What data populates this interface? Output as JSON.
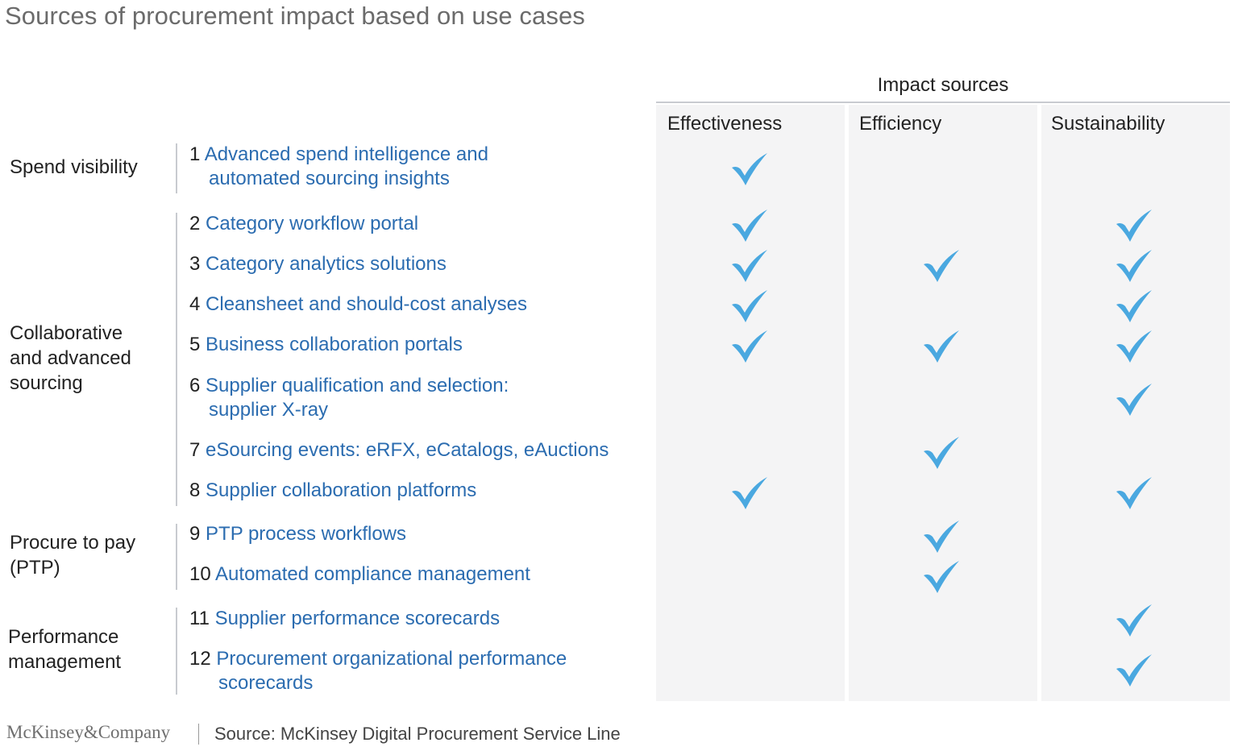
{
  "title": "Sources of procurement impact based on use cases",
  "impact_header": "Impact sources",
  "columns": [
    "Effectiveness",
    "Efficiency",
    "Sustainability"
  ],
  "groups": [
    {
      "label_lines": [
        "Spend visibility"
      ]
    },
    {
      "label_lines": [
        "Collaborative",
        "and advanced",
        "sourcing"
      ]
    },
    {
      "label_lines": [
        "Procure to pay",
        "(PTP)"
      ]
    },
    {
      "label_lines": [
        "Performance",
        "management"
      ]
    }
  ],
  "rows": [
    {
      "num": "1",
      "line1_bold": "Advanced spend intelligence",
      "line1_rest": " and",
      "line2": "automated sourcing insights",
      "effectiveness": true,
      "efficiency": false,
      "sustainability": false
    },
    {
      "num": "2",
      "line1_bold": "Category workflow portal",
      "line1_rest": "",
      "line2": "",
      "effectiveness": true,
      "efficiency": false,
      "sustainability": true
    },
    {
      "num": "3",
      "line1_bold": "Category analytics solutions",
      "line1_rest": "",
      "line2": "",
      "effectiveness": true,
      "efficiency": true,
      "sustainability": true
    },
    {
      "num": "4",
      "line1_bold": "Cleansheet and should-cost analyses",
      "line1_rest": "",
      "line2": "",
      "effectiveness": true,
      "efficiency": false,
      "sustainability": true
    },
    {
      "num": "5",
      "line1_bold": "Business collaboration portals",
      "line1_rest": "",
      "line2": "",
      "effectiveness": true,
      "efficiency": true,
      "sustainability": true
    },
    {
      "num": "6",
      "line1_bold": "Supplier qualification and selection:",
      "line1_rest": "",
      "line2": "supplier X-ray",
      "effectiveness": false,
      "efficiency": false,
      "sustainability": true
    },
    {
      "num": "7",
      "line1_bold": "eSourcing events:",
      "line1_rest": " eRFX, eCatalogs, eAuctions",
      "line2": "",
      "effectiveness": false,
      "efficiency": true,
      "sustainability": false
    },
    {
      "num": "8",
      "line1_bold": "Supplier collaboration platforms",
      "line1_rest": "",
      "line2": "",
      "effectiveness": true,
      "efficiency": false,
      "sustainability": true
    },
    {
      "num": "9",
      "line1_bold": "PTP process workflows",
      "line1_rest": "",
      "line2": "",
      "effectiveness": false,
      "efficiency": true,
      "sustainability": false
    },
    {
      "num": "10",
      "line1_bold": "Automated compliance management",
      "line1_rest": "",
      "line2": "",
      "effectiveness": false,
      "efficiency": true,
      "sustainability": false
    },
    {
      "num": "11",
      "line1_bold": "Supplier performance scorecards",
      "line1_rest": "",
      "line2": "",
      "effectiveness": false,
      "efficiency": false,
      "sustainability": true
    },
    {
      "num": "12",
      "line1_bold": "Procurement organizational performance",
      "line1_rest": "",
      "line2": "scorecards",
      "effectiveness": false,
      "efficiency": false,
      "sustainability": true
    }
  ],
  "footer": {
    "logo": "McKinsey&Company",
    "source": "Source: McKinsey Digital Procurement Service Line"
  },
  "colors": {
    "check": "#4aa8e0",
    "link_text": "#2b6cb0",
    "column_bg": "#f4f4f5"
  }
}
